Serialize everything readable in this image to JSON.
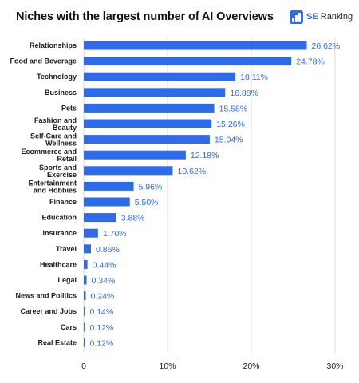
{
  "chart_data": {
    "type": "bar",
    "orientation": "horizontal",
    "title": "Niches with the largest number of AI Overviews",
    "categories": [
      "Relationships",
      "Food and Beverage",
      "Technology",
      "Business",
      "Pets",
      "Fashion and\nBeauty",
      "Self-Care and\nWellness",
      "Ecommerce and\nRetail",
      "Sports and\nExercise",
      "Entertainment\nand Hobbies",
      "Finance",
      "Education",
      "Insurance",
      "Travel",
      "Healthcare",
      "Legal",
      "News and Politics",
      "Career and Jobs",
      "Cars",
      "Real Estate"
    ],
    "values": [
      26.62,
      24.78,
      18.11,
      16.88,
      15.58,
      15.26,
      15.04,
      12.18,
      10.62,
      5.96,
      5.5,
      3.88,
      1.7,
      0.86,
      0.44,
      0.34,
      0.24,
      0.14,
      0.12,
      0.12
    ],
    "value_labels": [
      "26.62%",
      "24.78%",
      "18.11%",
      "16.88%",
      "15.58%",
      "15.26%",
      "15.04%",
      "12.18%",
      "10.62%",
      "5.96%",
      "5.50%",
      "3.88%",
      "1.70%",
      "0.86%",
      "0.44%",
      "0.34%",
      "0.24%",
      "0.14%",
      "0.12%",
      "0.12%"
    ],
    "xlim": [
      0,
      30
    ],
    "x_ticks": [
      0,
      10,
      20,
      30
    ],
    "x_tick_labels": [
      "0",
      "10%",
      "20%",
      "30%"
    ],
    "xlabel": "",
    "ylabel": "",
    "grid": "vertical",
    "colors": {
      "bar": "#2f6be9",
      "value_label": "#2f6be9",
      "grid": "#d9d9d9"
    }
  },
  "brand": {
    "name_bold": "SE",
    "name_rest": " Ranking",
    "icon": "se-ranking-logo-icon"
  }
}
